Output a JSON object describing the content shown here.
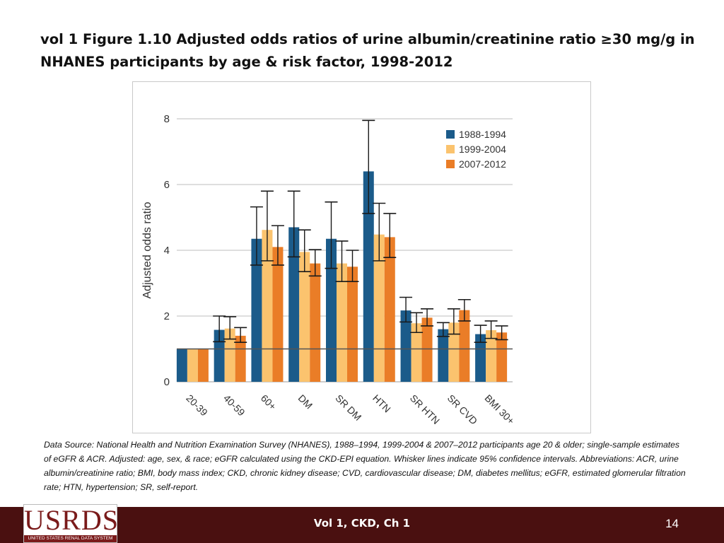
{
  "slide": {
    "title": "vol 1 Figure 1.10  Adjusted odds ratios of urine albumin/creatinine ratio ≥30 mg/g in NHANES participants by age & risk factor, 1998-2012",
    "source_note": "Data Source: National Health and Nutrition Examination Survey (NHANES), 1988–1994, 1999-2004 & 2007–2012 participants age 20 & older; single-sample estimates of eGFR & ACR. Adjusted: age, sex, & race; eGFR calculated using the CKD-EPI equation. Whisker lines indicate 95% confidence intervals. Abbreviations: ACR, urine albumin/creatinine ratio; BMI, body mass index; CKD, chronic kidney disease; CVD, cardiovascular disease; DM, diabetes mellitus; eGFR, estimated glomerular filtration rate; HTN, hypertension; SR, self-report."
  },
  "footer": {
    "logo_text": "USRDS",
    "logo_subtext": "UNITED STATES RENAL DATA SYSTEM",
    "center_text": "Vol 1, CKD, Ch 1",
    "page_number": "14"
  },
  "chart_data": {
    "type": "bar",
    "xlabel": "",
    "ylabel": "Adjusted odds ratio",
    "ylim": [
      0,
      8
    ],
    "yticks": [
      0,
      2,
      4,
      6,
      8
    ],
    "grid": true,
    "reference_line": 1,
    "legend_position": "top-right",
    "categories": [
      "20-39",
      "40-59",
      "60+",
      "DM",
      "SR DM",
      "HTN",
      "SR HTN",
      "SR CVD",
      "BMI 30+"
    ],
    "series": [
      {
        "name": "1988-1994",
        "color": "#1b5b8a",
        "values": [
          1.0,
          1.58,
          4.35,
          4.7,
          4.35,
          6.4,
          2.17,
          1.6,
          1.45
        ],
        "ci_low": [
          1.0,
          1.22,
          3.55,
          3.8,
          3.45,
          5.12,
          1.82,
          1.38,
          1.2
        ],
        "ci_high": [
          1.0,
          2.0,
          5.32,
          5.8,
          5.47,
          7.95,
          2.57,
          1.8,
          1.72
        ]
      },
      {
        "name": "1999-2004",
        "color": "#fbc36e",
        "values": [
          1.0,
          1.62,
          4.62,
          3.95,
          3.6,
          4.48,
          1.78,
          1.8,
          1.57
        ],
        "ci_low": [
          1.0,
          1.3,
          3.68,
          3.35,
          3.05,
          3.68,
          1.5,
          1.45,
          1.32
        ],
        "ci_high": [
          1.0,
          1.98,
          5.8,
          4.62,
          4.28,
          5.43,
          2.1,
          2.22,
          1.85
        ]
      },
      {
        "name": "2007-2012",
        "color": "#ea7d27",
        "values": [
          1.0,
          1.4,
          4.1,
          3.6,
          3.5,
          4.4,
          1.95,
          2.18,
          1.5
        ],
        "ci_low": [
          1.0,
          1.2,
          3.55,
          3.22,
          3.05,
          3.78,
          1.7,
          1.85,
          1.28
        ],
        "ci_high": [
          1.0,
          1.65,
          4.75,
          4.02,
          4.0,
          5.12,
          2.22,
          2.5,
          1.7
        ]
      }
    ]
  }
}
